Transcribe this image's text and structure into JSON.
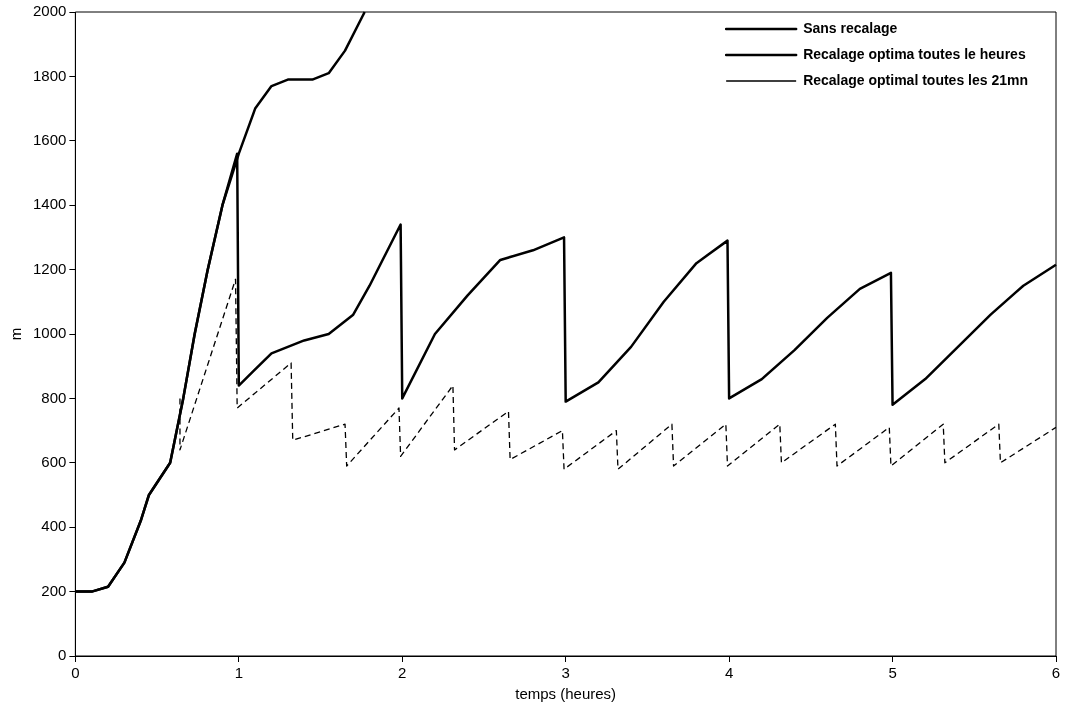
{
  "chart_data": {
    "type": "line",
    "xlabel": "temps (heures)",
    "ylabel": "m",
    "xlim": [
      0,
      6
    ],
    "ylim": [
      0,
      2000
    ],
    "xticks": [
      0,
      1,
      2,
      3,
      4,
      5,
      6
    ],
    "yticks": [
      0,
      200,
      400,
      600,
      800,
      1000,
      1200,
      1400,
      1600,
      1800,
      2000
    ],
    "grid": false,
    "legend": "top right",
    "marker": "none",
    "series": [
      {
        "name": "Sans recalage",
        "color": "#000000",
        "line_style": "solid",
        "x": [
          0,
          0.1,
          0.2,
          0.3,
          0.4,
          0.45,
          0.58,
          0.66,
          0.73,
          0.81,
          0.9,
          1,
          1.1,
          1.2,
          1.3,
          1.45,
          1.55,
          1.65,
          1.77
        ],
        "values": [
          200,
          200,
          215,
          290,
          420,
          500,
          600,
          800,
          1000,
          1200,
          1400,
          1560,
          1700,
          1770,
          1790,
          1790,
          1810,
          1880,
          2000
        ]
      },
      {
        "name": "Recalage optima toutes le heures",
        "color": "#000000",
        "line_style": "solid",
        "x": [
          0,
          0.1,
          0.2,
          0.3,
          0.4,
          0.45,
          0.58,
          0.66,
          0.73,
          0.81,
          0.9,
          0.99,
          1,
          1.2,
          1.4,
          1.55,
          1.7,
          1.8,
          1.9,
          1.99,
          2,
          2.2,
          2.4,
          2.6,
          2.8,
          2.99,
          3,
          3.2,
          3.4,
          3.6,
          3.8,
          3.99,
          4,
          4.2,
          4.4,
          4.6,
          4.8,
          4.99,
          5,
          5.2,
          5.4,
          5.6,
          5.8,
          6
        ],
        "values": [
          200,
          200,
          215,
          290,
          420,
          500,
          600,
          800,
          1000,
          1200,
          1400,
          1560,
          840,
          940,
          980,
          1000,
          1060,
          1150,
          1250,
          1340,
          800,
          1000,
          1120,
          1230,
          1260,
          1300,
          790,
          850,
          960,
          1100,
          1220,
          1290,
          800,
          860,
          950,
          1050,
          1140,
          1190,
          780,
          860,
          960,
          1060,
          1150,
          1215
        ]
      },
      {
        "name": "Recalage optimal toutes les 21mn",
        "color": "#000000",
        "line_style": "dashed",
        "x": [
          0.64,
          0.64,
          0.98,
          0.99,
          1.32,
          1.33,
          1.65,
          1.66,
          1.98,
          1.99,
          2.31,
          2.32,
          2.65,
          2.66,
          2.98,
          2.99,
          3.31,
          3.32,
          3.65,
          3.66,
          3.98,
          3.99,
          4.31,
          4.32,
          4.65,
          4.66,
          4.98,
          4.99,
          5.31,
          5.32,
          5.65,
          5.66,
          6
        ],
        "values": [
          800,
          640,
          1170,
          770,
          910,
          670,
          720,
          590,
          770,
          620,
          840,
          640,
          760,
          610,
          700,
          580,
          700,
          580,
          720,
          590,
          720,
          590,
          720,
          600,
          720,
          590,
          710,
          590,
          720,
          600,
          720,
          600,
          710
        ]
      }
    ]
  }
}
